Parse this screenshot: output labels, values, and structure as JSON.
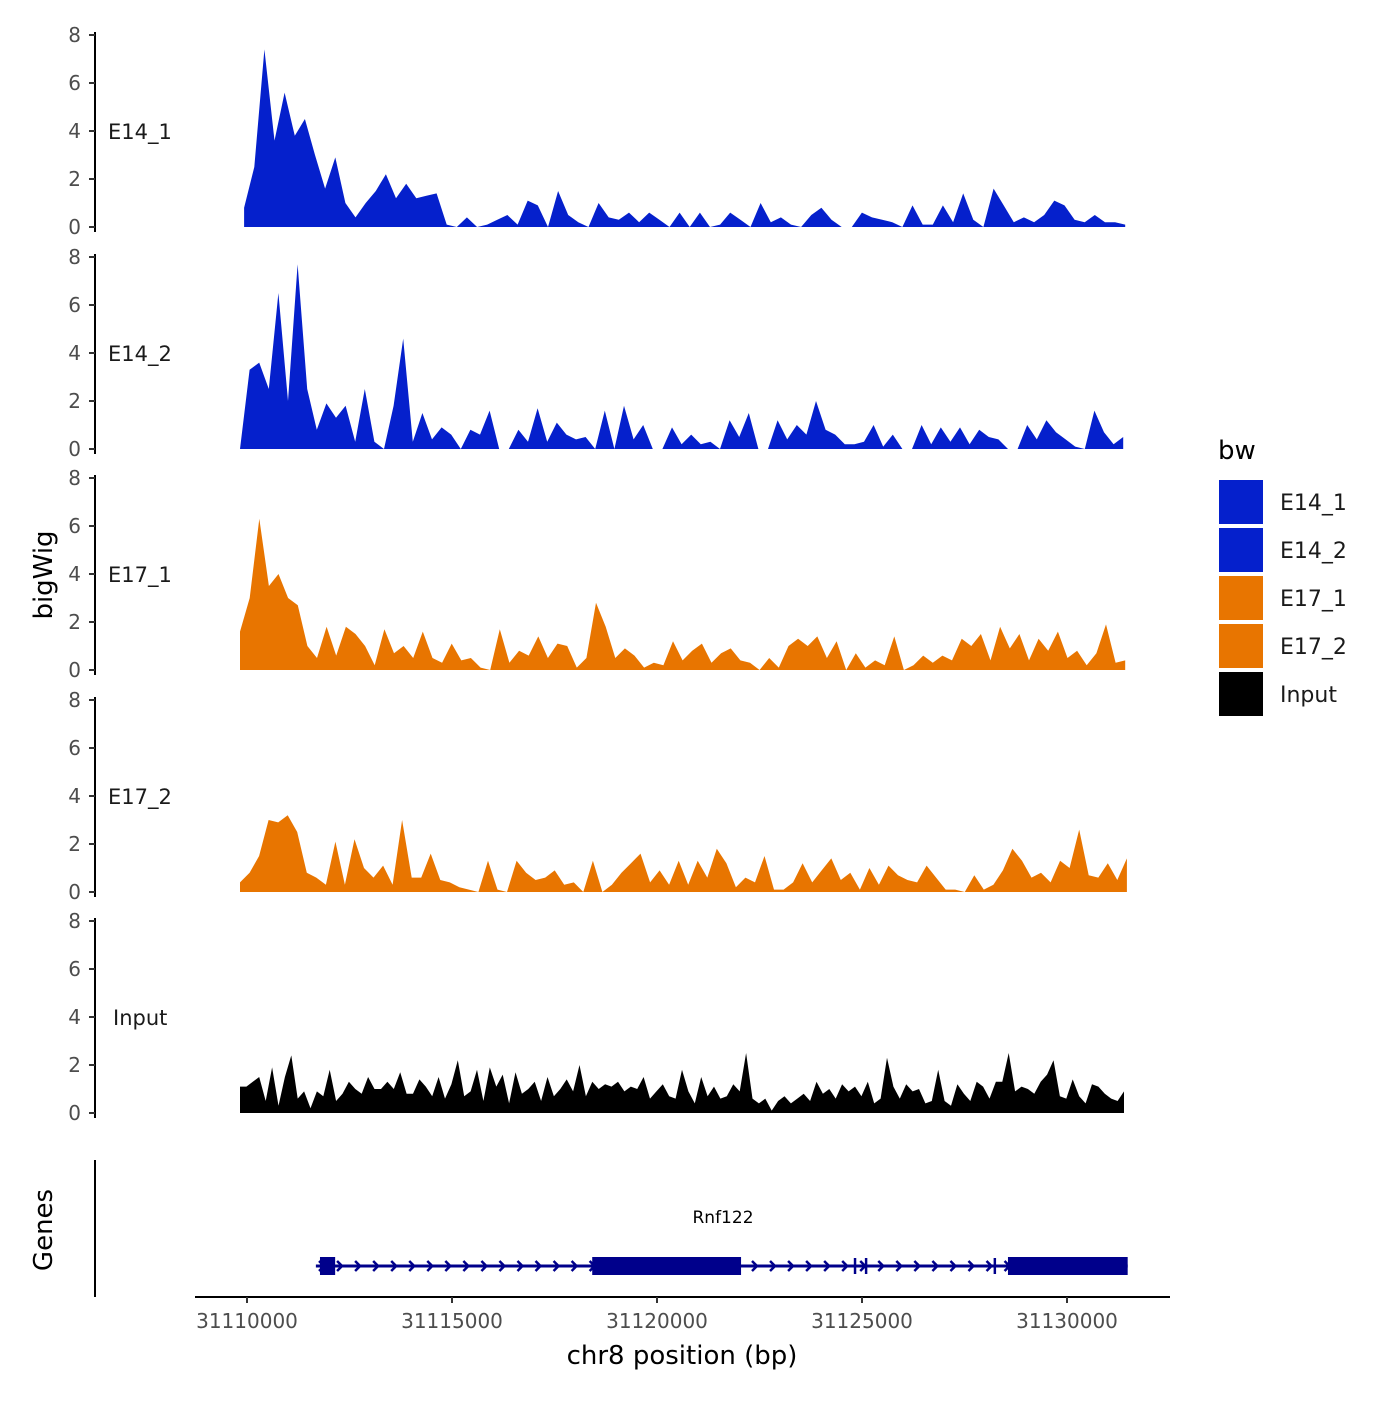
{
  "chart_data": {
    "type": "area",
    "ylabel": "bigWig",
    "xlabel": "chr8 position (bp)",
    "gene_track_label": "Genes",
    "ylim": [
      0,
      8
    ],
    "yticks": [
      0,
      2,
      4,
      6,
      8
    ],
    "xlim": [
      31107400,
      31132700
    ],
    "xticks": [
      31110000,
      31115000,
      31120000,
      31125000,
      31130000
    ],
    "xtick_labels": [
      "31110000",
      "31115000",
      "31120000",
      "31125000",
      "31130000"
    ],
    "legend": {
      "title": "bw",
      "position": "right",
      "entries": [
        {
          "label": "E14_1",
          "color": "#0520cc"
        },
        {
          "label": "E14_2",
          "color": "#0520cc"
        },
        {
          "label": "E17_1",
          "color": "#e87500"
        },
        {
          "label": "E17_2",
          "color": "#e87500"
        },
        {
          "label": "Input",
          "color": "#000000"
        }
      ]
    },
    "series": [
      {
        "name": "E14_1",
        "color": "#0520cc",
        "x_range": [
          31109930,
          31131420
        ],
        "values": [
          0.8,
          2.5,
          7.4,
          3.6,
          5.6,
          3.8,
          4.5,
          3.0,
          1.6,
          2.9,
          1.0,
          0.4,
          1.0,
          1.5,
          2.2,
          1.2,
          1.8,
          1.2,
          1.3,
          1.4,
          0.1,
          0,
          0.4,
          0,
          0.1,
          0.3,
          0.5,
          0.1,
          1.1,
          0.9,
          0,
          1.5,
          0.5,
          0.2,
          0,
          1.0,
          0.4,
          0.3,
          0.6,
          0.2,
          0.6,
          0.3,
          0,
          0.6,
          0,
          0.6,
          0,
          0.1,
          0.6,
          0.3,
          0,
          1.0,
          0.2,
          0.4,
          0.1,
          0,
          0.5,
          0.8,
          0.3,
          0,
          0,
          0.6,
          0.4,
          0.3,
          0.2,
          0,
          0.9,
          0.1,
          0.1,
          0.9,
          0.2,
          1.4,
          0.3,
          0,
          1.6,
          0.9,
          0.2,
          0.4,
          0.2,
          0.5,
          1.1,
          0.9,
          0.3,
          0.2,
          0.5,
          0.2,
          0.2,
          0.1
        ]
      },
      {
        "name": "E14_2",
        "color": "#0520cc",
        "x_range": [
          31109830,
          31131370
        ],
        "values": [
          0,
          3.3,
          3.6,
          2.5,
          6.5,
          2.0,
          7.7,
          2.5,
          0.8,
          1.9,
          1.3,
          1.8,
          0.3,
          2.5,
          0.3,
          0,
          1.8,
          4.6,
          0.3,
          1.5,
          0.4,
          0.9,
          0.6,
          0,
          0.8,
          0.6,
          1.6,
          0,
          0,
          0.8,
          0.3,
          1.7,
          0.3,
          1.1,
          0.6,
          0.4,
          0.5,
          0,
          1.6,
          0,
          1.8,
          0.4,
          1.0,
          0,
          0,
          0.9,
          0.2,
          0.6,
          0.2,
          0.3,
          0,
          1.2,
          0.5,
          1.5,
          0,
          0,
          1.2,
          0.4,
          1.0,
          0.6,
          2.0,
          0.8,
          0.6,
          0.2,
          0.2,
          0.3,
          1.0,
          0.1,
          0.6,
          0,
          0,
          1.0,
          0.2,
          0.9,
          0.3,
          0.9,
          0.2,
          0.8,
          0.5,
          0.4,
          0,
          0,
          1.0,
          0.4,
          1.2,
          0.7,
          0.4,
          0.1,
          0,
          1.6,
          0.7,
          0.2,
          0.5
        ]
      },
      {
        "name": "E17_1",
        "color": "#e87500",
        "x_range": [
          31109830,
          31131420
        ],
        "values": [
          1.6,
          3.0,
          6.3,
          3.5,
          4.0,
          3.0,
          2.7,
          1.0,
          0.5,
          1.8,
          0.6,
          1.8,
          1.5,
          1.0,
          0.2,
          1.7,
          0.7,
          1.0,
          0.5,
          1.6,
          0.5,
          0.3,
          1.1,
          0.4,
          0.5,
          0.1,
          0,
          1.7,
          0.3,
          0.8,
          0.6,
          1.4,
          0.5,
          1.1,
          1.0,
          0.1,
          0.5,
          2.8,
          1.8,
          0.5,
          0.9,
          0.6,
          0.1,
          0.3,
          0.2,
          1.2,
          0.4,
          0.8,
          1.1,
          0.3,
          0.7,
          0.9,
          0.4,
          0.3,
          0,
          0.5,
          0.1,
          1.0,
          1.3,
          1.0,
          1.4,
          0.5,
          1.2,
          0,
          0.7,
          0.1,
          0.4,
          0.2,
          1.4,
          0,
          0.2,
          0.6,
          0.3,
          0.6,
          0.4,
          1.3,
          1.0,
          1.5,
          0.4,
          1.8,
          0.9,
          1.5,
          0.4,
          1.3,
          0.8,
          1.6,
          0.5,
          0.8,
          0.2,
          0.7,
          1.9,
          0.3,
          0.4
        ]
      },
      {
        "name": "E17_2",
        "color": "#e87500",
        "x_range": [
          31109830,
          31131460
        ],
        "values": [
          0.4,
          0.8,
          1.5,
          3.0,
          2.9,
          3.2,
          2.5,
          0.8,
          0.6,
          0.3,
          2.1,
          0.3,
          2.2,
          1.0,
          0.6,
          1.1,
          0.3,
          3.0,
          0.6,
          0.6,
          1.6,
          0.5,
          0.4,
          0.2,
          0.1,
          0,
          1.3,
          0.1,
          0,
          1.3,
          0.8,
          0.5,
          0.6,
          0.9,
          0.3,
          0.4,
          0,
          1.3,
          0,
          0.3,
          0.8,
          1.2,
          1.6,
          0.4,
          0.9,
          0.3,
          1.3,
          0.3,
          1.3,
          0.6,
          1.8,
          1.2,
          0.2,
          0.6,
          0.4,
          1.5,
          0.1,
          0.1,
          0.4,
          1.2,
          0.4,
          0.9,
          1.4,
          0.5,
          0.8,
          0.1,
          1.0,
          0.3,
          1.1,
          0.7,
          0.5,
          0.4,
          1.1,
          0.6,
          0.1,
          0.1,
          0,
          0.7,
          0.1,
          0.3,
          0.9,
          1.8,
          1.3,
          0.6,
          0.8,
          0.4,
          1.3,
          1.0,
          2.6,
          0.7,
          0.6,
          1.2,
          0.5,
          1.4
        ]
      },
      {
        "name": "Input",
        "color": "#000000",
        "x_range": [
          31109830,
          31131390
        ],
        "values": [
          1.1,
          1.1,
          1.3,
          1.5,
          0.5,
          1.9,
          0.3,
          1.5,
          2.4,
          0.6,
          0.9,
          0.2,
          0.9,
          0.7,
          1.8,
          0.5,
          0.8,
          1.3,
          1.0,
          0.8,
          1.5,
          1.0,
          1.0,
          1.3,
          1.0,
          1.7,
          0.8,
          0.8,
          1.4,
          1.1,
          0.7,
          1.5,
          0.6,
          1.2,
          2.2,
          0.7,
          0.9,
          1.8,
          0.5,
          1.9,
          1.1,
          1.6,
          0.4,
          1.7,
          0.8,
          1.0,
          1.3,
          0.5,
          1.5,
          0.7,
          1.0,
          1.4,
          0.9,
          2.0,
          0.7,
          1.3,
          1.0,
          1.2,
          1.1,
          1.3,
          0.9,
          1.1,
          1.0,
          1.5,
          0.6,
          0.9,
          1.2,
          0.7,
          0.6,
          1.8,
          0.9,
          0.4,
          1.5,
          0.7,
          1.1,
          0.6,
          0.7,
          1.2,
          0.9,
          2.5,
          0.6,
          0.4,
          0.6,
          0.1,
          0.5,
          0.7,
          0.4,
          0.6,
          0.8,
          0.5,
          1.3,
          0.8,
          1.0,
          0.6,
          1.2,
          0.9,
          1.1,
          0.7,
          1.3,
          0.4,
          0.6,
          2.3,
          1.1,
          0.6,
          1.2,
          0.9,
          1.0,
          0.4,
          0.5,
          1.8,
          0.5,
          0.3,
          1.2,
          0.8,
          0.5,
          1.3,
          1.1,
          0.6,
          1.3,
          1.3,
          2.5,
          0.9,
          1.1,
          1.0,
          0.8,
          1.3,
          1.6,
          2.2,
          0.7,
          0.6,
          1.4,
          0.7,
          0.4,
          1.2,
          1.1,
          0.8,
          0.6,
          0.5,
          0.9
        ]
      }
    ],
    "gene": {
      "name": "Rnf122",
      "strand": "+",
      "color": "#00008b",
      "span": [
        31111680,
        31131480
      ],
      "exons": [
        [
          31111780,
          31112150
        ],
        [
          31118420,
          31122050
        ],
        [
          31124800,
          31124860
        ],
        [
          31125070,
          31125130
        ],
        [
          31128210,
          31128270
        ],
        [
          31128560,
          31131480
        ]
      ]
    }
  }
}
